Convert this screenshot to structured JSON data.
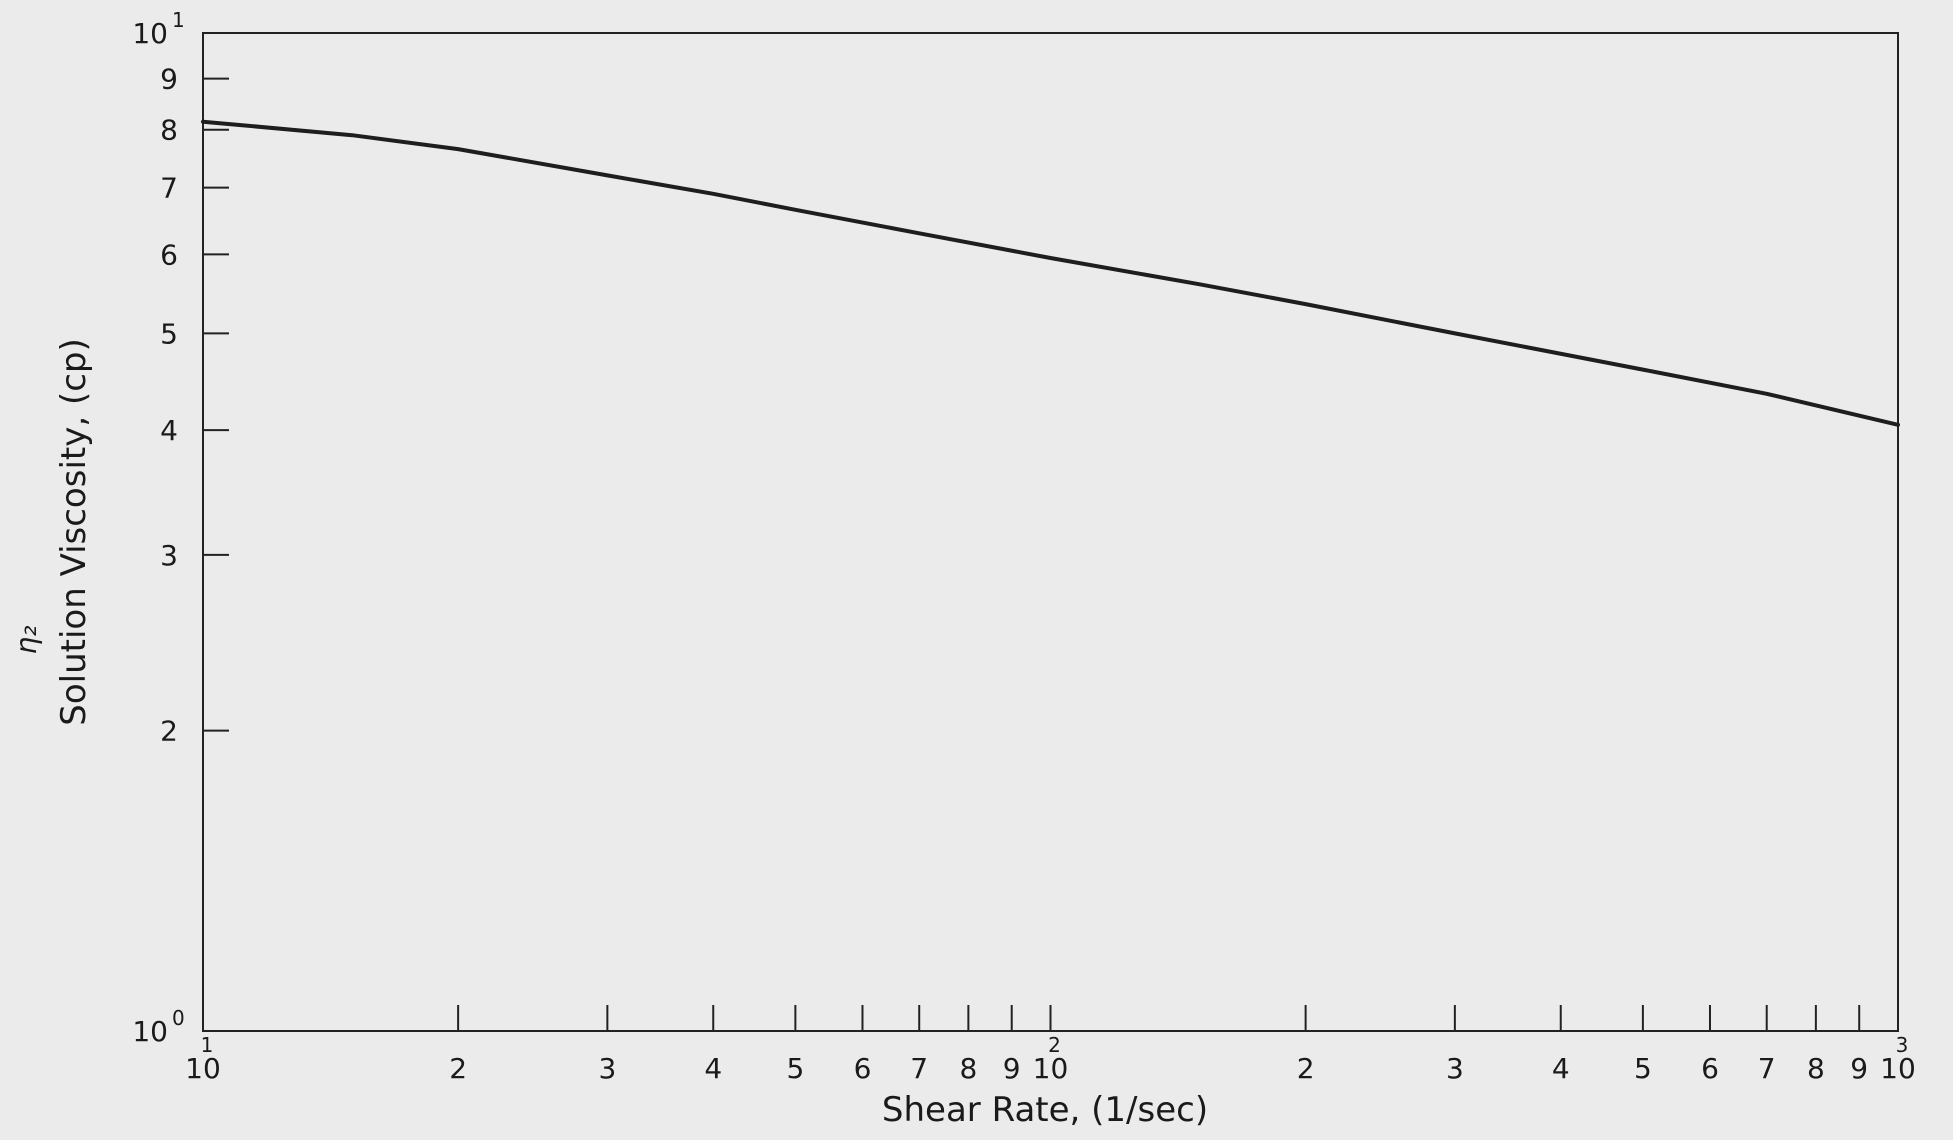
{
  "chart_data": {
    "type": "line",
    "xlabel": "Shear Rate, (1/sec)",
    "ylabel": "Solution Viscosity, (cp)",
    "side_mark": "η₂",
    "x_scale": "log",
    "y_scale": "log",
    "xlim": [
      10,
      1000
    ],
    "ylim": [
      1,
      10
    ],
    "grid": false,
    "x_ticks": [
      {
        "value": 10,
        "label": "10",
        "exp": "1"
      },
      {
        "value": 20,
        "label": "2"
      },
      {
        "value": 30,
        "label": "3"
      },
      {
        "value": 40,
        "label": "4"
      },
      {
        "value": 50,
        "label": "5"
      },
      {
        "value": 60,
        "label": "6"
      },
      {
        "value": 70,
        "label": "7"
      },
      {
        "value": 80,
        "label": "8"
      },
      {
        "value": 90,
        "label": "9"
      },
      {
        "value": 100,
        "label": "10",
        "exp": "2"
      },
      {
        "value": 200,
        "label": "2"
      },
      {
        "value": 300,
        "label": "3"
      },
      {
        "value": 400,
        "label": "4"
      },
      {
        "value": 500,
        "label": "5"
      },
      {
        "value": 600,
        "label": "6"
      },
      {
        "value": 700,
        "label": "7"
      },
      {
        "value": 800,
        "label": "8"
      },
      {
        "value": 900,
        "label": "9"
      },
      {
        "value": 1000,
        "label": "10",
        "exp": "3"
      }
    ],
    "y_ticks": [
      {
        "value": 1,
        "label": "10",
        "exp": "0"
      },
      {
        "value": 2,
        "label": "2"
      },
      {
        "value": 3,
        "label": "3"
      },
      {
        "value": 4,
        "label": "4"
      },
      {
        "value": 5,
        "label": "5"
      },
      {
        "value": 6,
        "label": "6"
      },
      {
        "value": 7,
        "label": "7"
      },
      {
        "value": 8,
        "label": "8"
      },
      {
        "value": 9,
        "label": "9"
      },
      {
        "value": 10,
        "label": "10",
        "exp": "1"
      }
    ],
    "series": [
      {
        "color": "#1e1e1e",
        "x": [
          10,
          15,
          20,
          30,
          40,
          50,
          70,
          100,
          150,
          200,
          300,
          500,
          700,
          1000
        ],
        "y": [
          8.15,
          7.9,
          7.65,
          7.2,
          6.9,
          6.65,
          6.3,
          5.95,
          5.6,
          5.35,
          5.0,
          4.6,
          4.35,
          4.05
        ]
      }
    ]
  }
}
